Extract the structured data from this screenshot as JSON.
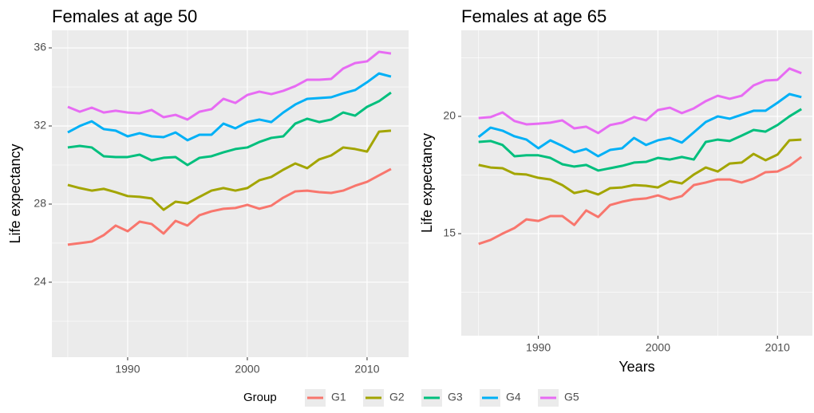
{
  "chart_data": [
    {
      "type": "line",
      "title": "Females at age 50",
      "y_label": "Life expectancy",
      "x": [
        1985,
        1986,
        1987,
        1988,
        1989,
        1990,
        1991,
        1992,
        1993,
        1994,
        1995,
        1996,
        1997,
        1998,
        1999,
        2000,
        2001,
        2002,
        2003,
        2004,
        2005,
        2006,
        2007,
        2008,
        2009,
        2010,
        2011,
        2012
      ],
      "xlim": [
        1983.67,
        2013.47
      ],
      "xticks": [
        1990,
        2000,
        2010
      ],
      "ylim": [
        20.16,
        36.9
      ],
      "yticks": [
        24,
        28,
        32,
        36
      ],
      "grid": true,
      "series": [
        {
          "name": "G1",
          "color": "#F8766D",
          "values": [
            25.92,
            26.0,
            26.08,
            26.41,
            26.9,
            26.61,
            27.1,
            26.98,
            26.49,
            27.14,
            26.9,
            27.43,
            27.63,
            27.76,
            27.8,
            27.96,
            27.76,
            27.92,
            28.33,
            28.65,
            28.69,
            28.61,
            28.57,
            28.69,
            28.94,
            29.14,
            29.47,
            29.8
          ]
        },
        {
          "name": "G2",
          "color": "#A3A500",
          "values": [
            28.98,
            28.82,
            28.69,
            28.78,
            28.61,
            28.41,
            28.37,
            28.29,
            27.71,
            28.12,
            28.04,
            28.37,
            28.69,
            28.82,
            28.69,
            28.82,
            29.22,
            29.39,
            29.76,
            30.08,
            29.84,
            30.29,
            30.49,
            30.9,
            30.82,
            30.69,
            31.71,
            31.76
          ]
        },
        {
          "name": "G3",
          "color": "#00BF7D",
          "values": [
            30.9,
            30.98,
            30.9,
            30.45,
            30.41,
            30.41,
            30.53,
            30.24,
            30.37,
            30.41,
            30.0,
            30.37,
            30.45,
            30.65,
            30.82,
            30.9,
            31.18,
            31.39,
            31.47,
            32.12,
            32.37,
            32.2,
            32.33,
            32.69,
            32.53,
            32.98,
            33.27,
            33.71
          ]
        },
        {
          "name": "G4",
          "color": "#00B0F6",
          "values": [
            31.67,
            32.0,
            32.24,
            31.84,
            31.76,
            31.47,
            31.63,
            31.47,
            31.43,
            31.67,
            31.27,
            31.55,
            31.55,
            32.12,
            31.88,
            32.2,
            32.33,
            32.2,
            32.69,
            33.1,
            33.39,
            33.43,
            33.47,
            33.67,
            33.84,
            34.24,
            34.69,
            34.53
          ]
        },
        {
          "name": "G5",
          "color": "#E76BF3",
          "values": [
            32.98,
            32.73,
            32.94,
            32.69,
            32.78,
            32.69,
            32.65,
            32.82,
            32.45,
            32.57,
            32.33,
            32.73,
            32.86,
            33.39,
            33.18,
            33.59,
            33.76,
            33.63,
            33.8,
            34.04,
            34.37,
            34.37,
            34.41,
            34.94,
            35.22,
            35.31,
            35.8,
            35.71
          ]
        }
      ]
    },
    {
      "type": "line",
      "title": "Females at age 65",
      "y_label": "Life expectancy",
      "x_label": "Years",
      "x": [
        1985,
        1986,
        1987,
        1988,
        1989,
        1990,
        1991,
        1992,
        1993,
        1994,
        1995,
        1996,
        1997,
        1998,
        1999,
        2000,
        2001,
        2002,
        2003,
        2004,
        2005,
        2006,
        2007,
        2008,
        2009,
        2010,
        2011,
        2012
      ],
      "xlim": [
        1983.55,
        2012.92
      ],
      "xticks": [
        1990,
        2000,
        2010
      ],
      "ylim": [
        10.65,
        23.67
      ],
      "yticks": [
        15,
        20
      ],
      "grid": true,
      "series": [
        {
          "name": "G1",
          "color": "#F8766D",
          "values": [
            14.56,
            14.73,
            15.0,
            15.24,
            15.61,
            15.54,
            15.75,
            15.75,
            15.37,
            15.99,
            15.71,
            16.22,
            16.36,
            16.46,
            16.5,
            16.63,
            16.46,
            16.6,
            17.07,
            17.18,
            17.31,
            17.31,
            17.18,
            17.35,
            17.62,
            17.65,
            17.89,
            18.27
          ]
        },
        {
          "name": "G2",
          "color": "#A3A500",
          "values": [
            17.93,
            17.82,
            17.79,
            17.55,
            17.52,
            17.38,
            17.31,
            17.07,
            16.73,
            16.84,
            16.67,
            16.94,
            16.97,
            17.07,
            17.04,
            16.97,
            17.24,
            17.14,
            17.52,
            17.82,
            17.65,
            17.99,
            18.03,
            18.4,
            18.13,
            18.37,
            18.98,
            19.01
          ]
        },
        {
          "name": "G3",
          "color": "#00BF7D",
          "values": [
            18.91,
            18.95,
            18.78,
            18.3,
            18.34,
            18.34,
            18.23,
            17.96,
            17.86,
            17.93,
            17.69,
            17.79,
            17.89,
            18.03,
            18.06,
            18.23,
            18.16,
            18.27,
            18.16,
            18.91,
            19.01,
            18.95,
            19.18,
            19.42,
            19.35,
            19.63,
            20.0,
            20.31
          ]
        },
        {
          "name": "G4",
          "color": "#00B0F6",
          "values": [
            19.12,
            19.52,
            19.39,
            19.15,
            19.01,
            18.64,
            18.98,
            18.74,
            18.47,
            18.61,
            18.3,
            18.57,
            18.64,
            19.08,
            18.78,
            18.98,
            19.08,
            18.88,
            19.32,
            19.76,
            20.0,
            19.9,
            20.07,
            20.24,
            20.24,
            20.58,
            20.95,
            20.82
          ]
        },
        {
          "name": "G5",
          "color": "#E76BF3",
          "values": [
            19.93,
            19.97,
            20.17,
            19.8,
            19.66,
            19.69,
            19.73,
            19.83,
            19.49,
            19.56,
            19.29,
            19.63,
            19.73,
            19.97,
            19.83,
            20.27,
            20.37,
            20.14,
            20.34,
            20.65,
            20.88,
            20.75,
            20.88,
            21.32,
            21.53,
            21.56,
            22.04,
            21.84
          ]
        }
      ]
    }
  ],
  "legend_title": "Group"
}
